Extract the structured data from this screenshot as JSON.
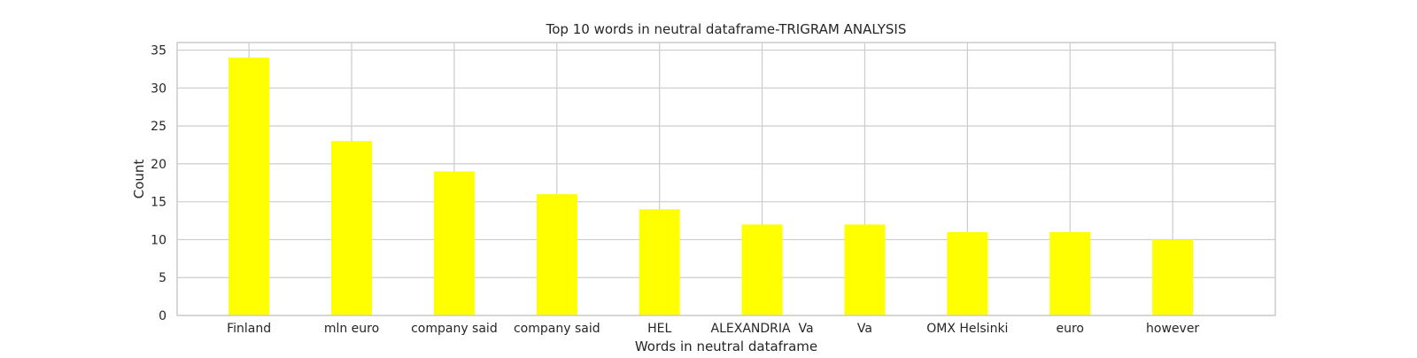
{
  "chart_data": {
    "type": "bar",
    "title": "Top 10 words in neutral dataframe-TRIGRAM ANALYSIS",
    "xlabel": "Words in neutral dataframe",
    "ylabel": "Count",
    "categories": [
      "Finland",
      "mln euro",
      "company said",
      "company said",
      "HEL",
      "ALEXANDRIA  Va",
      "Va",
      "OMX Helsinki",
      "euro",
      "however"
    ],
    "values": [
      34,
      23,
      19,
      16,
      14,
      12,
      12,
      11,
      11,
      10
    ],
    "ylim": [
      0,
      36
    ],
    "yticks": [
      0,
      5,
      10,
      15,
      20,
      25,
      30,
      35
    ],
    "grid": true,
    "legend": "none",
    "colors": {
      "bar": "#ffff00",
      "grid": "#cccccc",
      "axes_edge": "#cccccc",
      "text": "#262626"
    }
  }
}
